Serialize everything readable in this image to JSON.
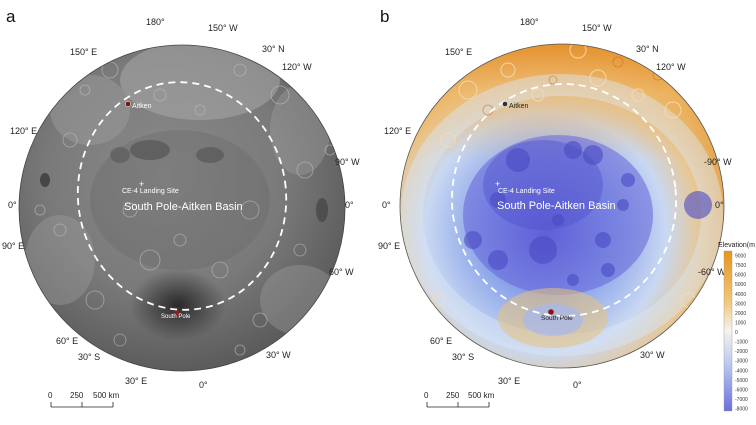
{
  "panel_a": {
    "letter": "a",
    "labels": {
      "lon_180": "180°",
      "lon_150w": "150° W",
      "lon_150e": "150° E",
      "lat_30n": "30° N",
      "lon_120w": "120° W",
      "lon_120e": "120° E",
      "lon_90w": "90° W",
      "lon_90e": "90° E",
      "zero_left": "0°",
      "zero_right": "0°",
      "lon_60w": "60° W",
      "lon_60e": "60° E",
      "lat_30s": "30° S",
      "lon_30w": "30° W",
      "lon_30e": "30° E",
      "zero_bottom": "0°"
    },
    "aitken": "Aitken",
    "landing_site": "CE-4 Landing Site",
    "basin_name": "South Pole-Aitken Basin",
    "south_pole": "South Pole",
    "scale": {
      "t0": "0",
      "t1": "250",
      "t2": "500 km"
    }
  },
  "panel_b": {
    "letter": "b",
    "labels": {
      "lon_180": "180°",
      "lon_150w": "150° W",
      "lon_150e": "150° E",
      "lat_30n": "30° N",
      "lon_120w": "120° W",
      "lon_120e": "120° E",
      "lon_90w": "-90° W",
      "lon_90e": "90° E",
      "zero_left": "0°",
      "zero_right": "0°",
      "lon_60w": "-60° W",
      "lon_60e": "60° E",
      "lat_30s": "30° S",
      "lon_30w": "30° W",
      "lon_30e": "30° E",
      "zero_bottom": "0°"
    },
    "aitken": "Aitken",
    "landing_site": "CE-4 Landing Site",
    "basin_name": "South Pole-Aitken Basin",
    "south_pole": "South Pole",
    "scale": {
      "t0": "0",
      "t1": "250",
      "t2": "500 km"
    },
    "colorbar": {
      "title": "Elevation(m",
      "ticks": [
        "9000",
        "7500",
        "6000",
        "5000",
        "4000",
        "3000",
        "2000",
        "1000",
        "0",
        "-1000",
        "-2000",
        "-3000",
        "-4000",
        "-5000",
        "-6000",
        "-7000",
        "-8000"
      ],
      "colors": {
        "top": "#e8941c",
        "mid": "#f4f4ee",
        "bottom": "#6e6ee0"
      }
    }
  }
}
